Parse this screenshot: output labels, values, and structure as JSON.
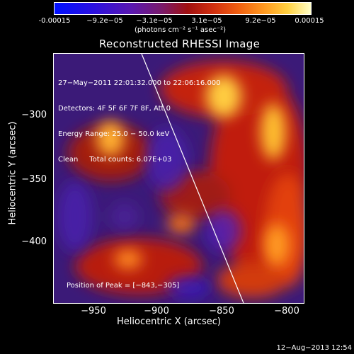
{
  "colorbar": {
    "ticks": [
      "-0.00015",
      "−9.2e−05",
      "−3.1e−05",
      "3.1e−05",
      "9.2e−05",
      "0.00015"
    ],
    "unit": "(photons cm⁻² s⁻¹ asec⁻²)",
    "colors": [
      "#0010ff",
      "#5a18b0",
      "#a01010",
      "#f06010",
      "#ffd040",
      "#ffffc8"
    ]
  },
  "title": "Reconstructed RHESSI Image",
  "info": {
    "line1": "27−May−2011 22:01:32.000 to 22:06:16.000",
    "line2": "Detectors: 4F 5F 6F 7F 8F, Att 0",
    "line3": "Energy Range: 25.0 − 50.0 keV",
    "line4": "Clean     Total counts: 6.07E+03"
  },
  "peak": "Position of Peak = [−843,−305]",
  "axes": {
    "xlabel": "Heliocentric X (arcsec)",
    "ylabel": "Heliocentric Y (arcsec)",
    "xticks": [
      "−950",
      "−900",
      "−850",
      "−800"
    ],
    "yticks": [
      "−300",
      "−350",
      "−400"
    ]
  },
  "footer_date": "12−Aug−2013 12:54"
}
